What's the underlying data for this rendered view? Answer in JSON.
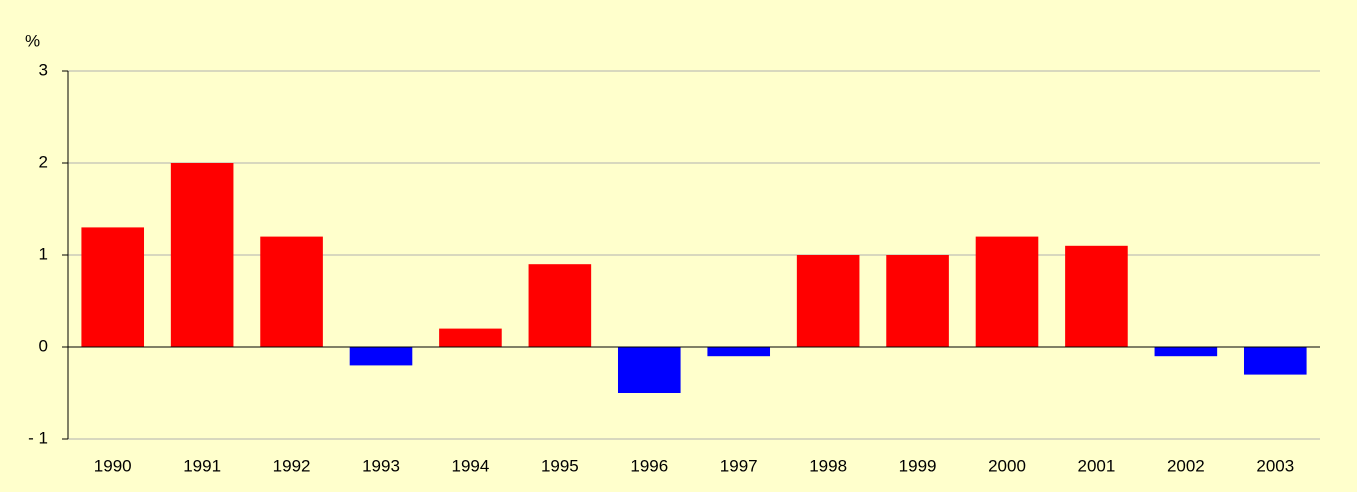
{
  "chart_data": {
    "type": "bar",
    "y_unit": "%",
    "categories": [
      "1990",
      "1991",
      "1992",
      "1993",
      "1994",
      "1995",
      "1996",
      "1997",
      "1998",
      "1999",
      "2000",
      "2001",
      "2002",
      "2003"
    ],
    "values": [
      1.3,
      2.0,
      1.2,
      -0.2,
      0.2,
      0.9,
      -0.5,
      -0.1,
      1.0,
      1.0,
      1.2,
      1.1,
      -0.1,
      -0.3
    ],
    "positive_color": "#ff0000",
    "negative_color": "#0000ff",
    "ylim": [
      -1,
      3
    ],
    "yticks": [
      {
        "value": -1,
        "label": "- 1"
      },
      0,
      1,
      2,
      3
    ],
    "grid": true
  }
}
